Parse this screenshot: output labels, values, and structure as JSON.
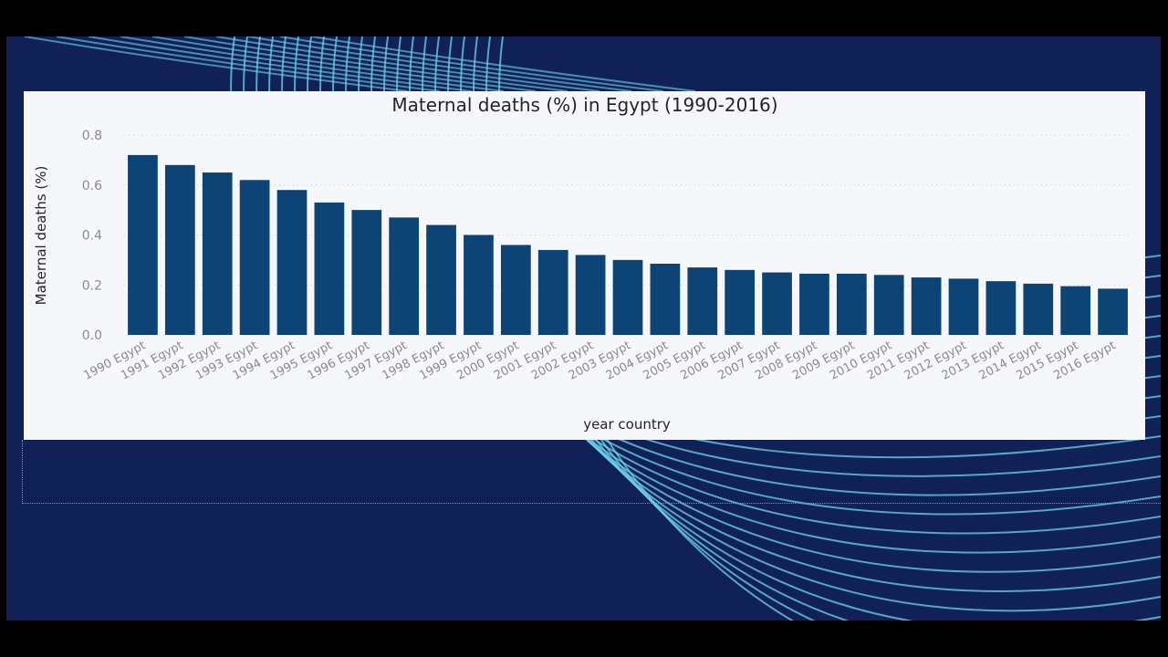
{
  "colors": {
    "slide_bg": "#0f2157",
    "panel_bg": "#f6f7fa",
    "bar": "#0e4375",
    "wave": "#6fd3e8",
    "text": "#252525",
    "tick_text": "#8c8c8c"
  },
  "chart_data": {
    "type": "bar",
    "title": "Maternal deaths (%) in Egypt (1990-2016)",
    "xlabel": "year country",
    "ylabel": "Maternal deaths (%)",
    "ylim": [
      0,
      0.8
    ],
    "yticks": [
      "0.0",
      "0.2",
      "0.4",
      "0.6",
      "0.8"
    ],
    "grid": true,
    "categories": [
      "1990 Egypt",
      "1991 Egypt",
      "1992 Egypt",
      "1993 Egypt",
      "1994 Egypt",
      "1995 Egypt",
      "1996 Egypt",
      "1997 Egypt",
      "1998 Egypt",
      "1999 Egypt",
      "2000 Egypt",
      "2001 Egypt",
      "2002 Egypt",
      "2003 Egypt",
      "2004 Egypt",
      "2005 Egypt",
      "2006 Egypt",
      "2007 Egypt",
      "2008 Egypt",
      "2009 Egypt",
      "2010 Egypt",
      "2011 Egypt",
      "2012 Egypt",
      "2013 Egypt",
      "2014 Egypt",
      "2015 Egypt",
      "2016 Egypt"
    ],
    "values": [
      0.72,
      0.68,
      0.65,
      0.62,
      0.58,
      0.53,
      0.5,
      0.47,
      0.44,
      0.4,
      0.36,
      0.34,
      0.32,
      0.3,
      0.285,
      0.27,
      0.26,
      0.25,
      0.245,
      0.245,
      0.24,
      0.23,
      0.225,
      0.215,
      0.205,
      0.195,
      0.185
    ]
  }
}
